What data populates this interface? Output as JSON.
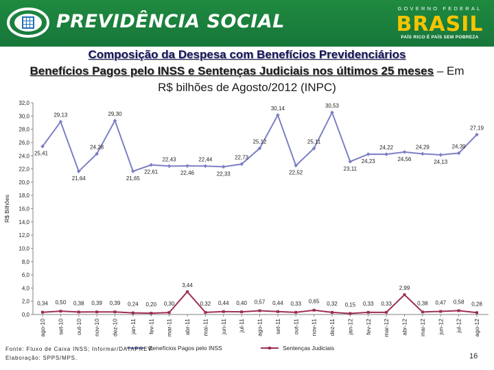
{
  "header": {
    "brand": "PREVIDÊNCIA SOCIAL",
    "gov_label": "GOVERNO FEDERAL",
    "gov_brand": "BRASIL",
    "gov_tagline": "PAÍS RICO É PAÍS SEM POBREZA",
    "colors": {
      "band": "#1f8a3f",
      "gov_yellow": "#f5c400"
    }
  },
  "title": {
    "line1": "Composição da Despesa com Benefícios Previdenciários",
    "line2_bold": "Benefícios Pagos pelo INSS e Sentenças Judiciais nos últimos 25 meses",
    "line2_rest": " – Em R$ bilhões de Agosto/2012 (INPC)"
  },
  "footer": {
    "source": "Fonte: Fluxo de Caixa INSS; Informar/DATAPREV.",
    "prepared": "Elaboração: SPPS/MPS.",
    "page": "16"
  },
  "chart_data": {
    "type": "line",
    "ylabel": "R$ Bilhões",
    "ylim": [
      0,
      32
    ],
    "yticks": [
      "0,0",
      "2,0",
      "4,0",
      "6,0",
      "8,0",
      "10,0",
      "12,0",
      "14,0",
      "16,0",
      "18,0",
      "20,0",
      "22,0",
      "24,0",
      "26,0",
      "28,0",
      "30,0",
      "32,0"
    ],
    "grid": false,
    "legend_position": "bottom",
    "categories": [
      "ago-10",
      "set-10",
      "out-10",
      "nov-10",
      "dez-10",
      "jan-11",
      "fev-11",
      "mar-11",
      "abr-11",
      "mai-11",
      "jun-11",
      "jul-11",
      "ago-11",
      "set-11",
      "out-11",
      "nov-11",
      "dez-11",
      "jan-12",
      "fev-12",
      "mar-12",
      "abr-12",
      "mai-12",
      "jun-12",
      "jul-12",
      "ago-12"
    ],
    "series": [
      {
        "name": "Benefícios Pagos pelo INSS",
        "color": "#7b7fc4",
        "values": [
          25.41,
          29.13,
          21.64,
          24.28,
          29.3,
          21.65,
          22.61,
          22.43,
          22.46,
          22.44,
          22.33,
          22.73,
          25.12,
          30.14,
          22.52,
          25.11,
          30.53,
          23.11,
          24.23,
          24.22,
          24.56,
          24.29,
          24.13,
          24.39,
          27.19
        ],
        "labels": [
          "25,41",
          "29,13",
          "21,64",
          "24,28",
          "29,30",
          "21,65",
          "22,61",
          "22,43",
          "22,46",
          "22,44",
          "22,33",
          "22,73",
          "25,12",
          "30,14",
          "22,52",
          "25,11",
          "30,53",
          "23,11",
          "24,23",
          "24,22",
          "24,56",
          "24,29",
          "24,13",
          "24,39",
          "27,19"
        ],
        "label_pos": [
          "below",
          "above",
          "below",
          "above",
          "above",
          "below",
          "below",
          "above",
          "below",
          "above",
          "below",
          "above",
          "above",
          "above",
          "below",
          "above",
          "above",
          "below",
          "below",
          "above",
          "below",
          "above",
          "below",
          "above",
          "above"
        ]
      },
      {
        "name": "Sentenças Judiciais",
        "color": "#9c2d52",
        "values": [
          0.34,
          0.5,
          0.38,
          0.39,
          0.39,
          0.24,
          0.2,
          0.3,
          3.44,
          0.32,
          0.44,
          0.4,
          0.57,
          0.44,
          0.33,
          0.65,
          0.32,
          0.15,
          0.33,
          0.33,
          2.99,
          0.38,
          0.47,
          0.58,
          0.28
        ],
        "labels": [
          "0,34",
          "0,50",
          "0,38",
          "0,39",
          "0,39",
          "0,24",
          "0,20",
          "0,30",
          "3,44",
          "0,32",
          "0,44",
          "0,40",
          "0,57",
          "0,44",
          "0,33",
          "0,65",
          "0,32",
          "0,15",
          "0,33",
          "0,33",
          "2,99",
          "0,38",
          "0,47",
          "0,58",
          "0,28"
        ]
      }
    ]
  }
}
